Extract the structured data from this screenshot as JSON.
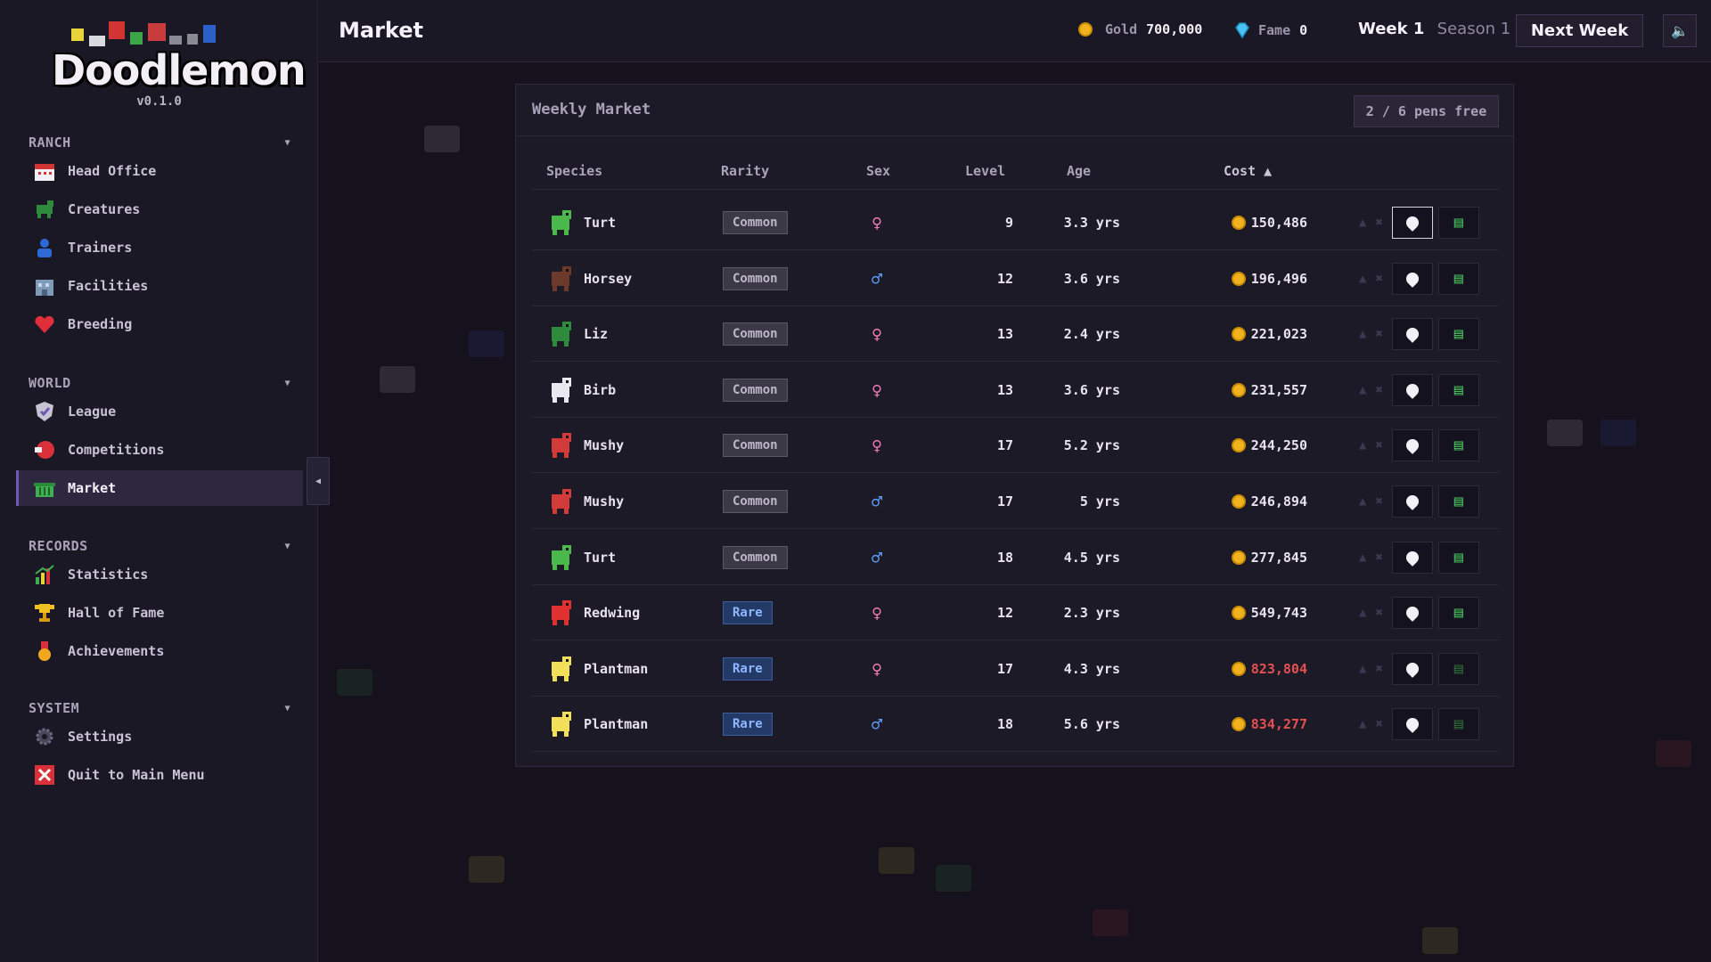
{
  "app": {
    "name": "Doodlemon",
    "version": "v0.1.0"
  },
  "sidebar": {
    "sections": [
      {
        "title": "RANCH",
        "items": [
          {
            "label": "Head Office",
            "icon": "calendar-icon"
          },
          {
            "label": "Creatures",
            "icon": "creature-icon"
          },
          {
            "label": "Trainers",
            "icon": "trainer-icon"
          },
          {
            "label": "Facilities",
            "icon": "building-icon"
          },
          {
            "label": "Breeding",
            "icon": "heart-icon"
          }
        ]
      },
      {
        "title": "WORLD",
        "items": [
          {
            "label": "League",
            "icon": "shield-icon"
          },
          {
            "label": "Competitions",
            "icon": "competition-icon"
          },
          {
            "label": "Market",
            "icon": "basket-icon",
            "active": true
          }
        ]
      },
      {
        "title": "RECORDS",
        "items": [
          {
            "label": "Statistics",
            "icon": "chart-icon"
          },
          {
            "label": "Hall of Fame",
            "icon": "trophy-icon"
          },
          {
            "label": "Achievements",
            "icon": "medal-icon"
          }
        ]
      },
      {
        "title": "SYSTEM",
        "items": [
          {
            "label": "Settings",
            "icon": "gear-icon"
          },
          {
            "label": "Quit to Main Menu",
            "icon": "close-icon"
          }
        ]
      }
    ]
  },
  "topbar": {
    "title": "Market",
    "gold_label": "Gold",
    "gold_value": "700,000",
    "fame_label": "Fame",
    "fame_value": "0",
    "week": "Week 1",
    "season": "Season 1",
    "next_week_label": "Next Week"
  },
  "market": {
    "title": "Weekly Market",
    "pens": "2 / 6 pens free",
    "columns": [
      "Species",
      "Rarity",
      "Sex",
      "Level",
      "Age",
      "Cost ▲"
    ],
    "rows": [
      {
        "species": "Turt",
        "rarity": "Common",
        "sex": "♀",
        "level": "9",
        "age": "3.3 yrs",
        "cost": "150,486",
        "affordable": true,
        "color": "#4bb84b"
      },
      {
        "species": "Horsey",
        "rarity": "Common",
        "sex": "♂",
        "level": "12",
        "age": "3.6 yrs",
        "cost": "196,496",
        "affordable": true,
        "color": "#6b3a2a"
      },
      {
        "species": "Liz",
        "rarity": "Common",
        "sex": "♀",
        "level": "13",
        "age": "2.4 yrs",
        "cost": "221,023",
        "affordable": true,
        "color": "#2e8b3e"
      },
      {
        "species": "Birb",
        "rarity": "Common",
        "sex": "♀",
        "level": "13",
        "age": "3.6 yrs",
        "cost": "231,557",
        "affordable": true,
        "color": "#e8e8ee"
      },
      {
        "species": "Mushy",
        "rarity": "Common",
        "sex": "♀",
        "level": "17",
        "age": "5.2 yrs",
        "cost": "244,250",
        "affordable": true,
        "color": "#d33b3b"
      },
      {
        "species": "Mushy",
        "rarity": "Common",
        "sex": "♂",
        "level": "17",
        "age": "5 yrs",
        "cost": "246,894",
        "affordable": true,
        "color": "#d33b3b"
      },
      {
        "species": "Turt",
        "rarity": "Common",
        "sex": "♂",
        "level": "18",
        "age": "4.5 yrs",
        "cost": "277,845",
        "affordable": true,
        "color": "#4bb84b"
      },
      {
        "species": "Redwing",
        "rarity": "Rare",
        "sex": "♀",
        "level": "12",
        "age": "2.3 yrs",
        "cost": "549,743",
        "affordable": true,
        "color": "#e03030"
      },
      {
        "species": "Plantman",
        "rarity": "Rare",
        "sex": "♀",
        "level": "17",
        "age": "4.3 yrs",
        "cost": "823,804",
        "affordable": false,
        "color": "#f2e05a"
      },
      {
        "species": "Plantman",
        "rarity": "Rare",
        "sex": "♂",
        "level": "18",
        "age": "5.6 yrs",
        "cost": "834,277",
        "affordable": false,
        "color": "#f2e05a"
      }
    ]
  }
}
